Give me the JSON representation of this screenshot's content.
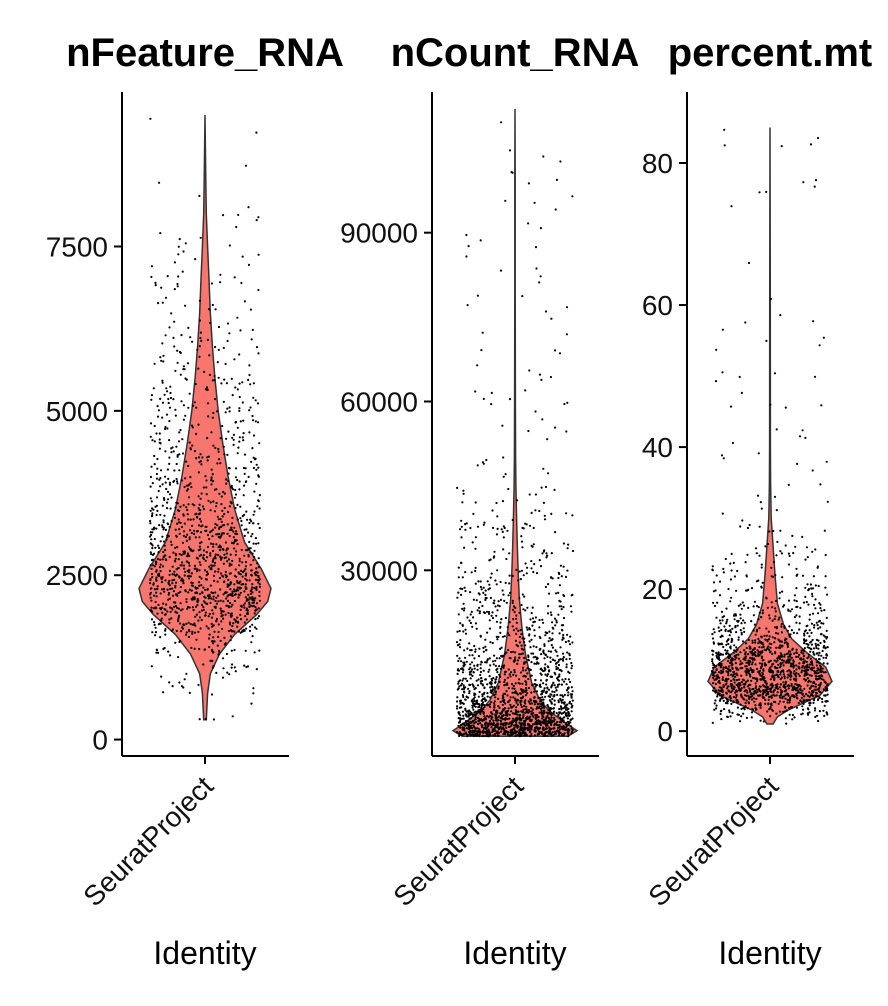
{
  "colors": {
    "violin_fill": "#f8766d",
    "violin_stroke": "#333333",
    "points": "#000000",
    "axis": "#000000"
  },
  "chart_data": [
    {
      "type": "violin",
      "title": "nFeature_RNA",
      "categories": [
        "SeuratProject"
      ],
      "xlabel": "Identity",
      "ylabel": "",
      "ylim": [
        -250,
        9850
      ],
      "yticks": [
        0,
        2500,
        5000,
        7500
      ],
      "ytick_labels": [
        "0",
        "2500",
        "5000",
        "7500"
      ],
      "summary": {
        "min": 300,
        "max": 9500,
        "mode": 2200,
        "median": 2400
      },
      "density_profile": [
        [
          300,
          0.02
        ],
        [
          700,
          0.04
        ],
        [
          1000,
          0.08
        ],
        [
          1300,
          0.22
        ],
        [
          1600,
          0.45
        ],
        [
          1900,
          0.78
        ],
        [
          2100,
          0.95
        ],
        [
          2300,
          1.0
        ],
        [
          2600,
          0.85
        ],
        [
          3000,
          0.6
        ],
        [
          3500,
          0.45
        ],
        [
          4000,
          0.35
        ],
        [
          4500,
          0.27
        ],
        [
          5000,
          0.2
        ],
        [
          5500,
          0.15
        ],
        [
          6000,
          0.11
        ],
        [
          6500,
          0.08
        ],
        [
          7000,
          0.06
        ],
        [
          7500,
          0.04
        ],
        [
          8000,
          0.02
        ],
        [
          8500,
          0.012
        ],
        [
          9000,
          0.006
        ],
        [
          9500,
          0.0
        ]
      ]
    },
    {
      "type": "violin",
      "title": "nCount_RNA",
      "categories": [
        "SeuratProject"
      ],
      "xlabel": "Identity",
      "ylabel": "",
      "ylim": [
        -3000,
        115000
      ],
      "yticks": [
        30000,
        60000,
        90000
      ],
      "ytick_labels": [
        "30000",
        "60000",
        "90000"
      ],
      "summary": {
        "min": 500,
        "max": 112000,
        "mode": 1500,
        "median": 6000
      },
      "density_profile": [
        [
          500,
          0.85
        ],
        [
          1500,
          1.0
        ],
        [
          3000,
          0.8
        ],
        [
          5000,
          0.55
        ],
        [
          7000,
          0.4
        ],
        [
          10000,
          0.27
        ],
        [
          15000,
          0.17
        ],
        [
          20000,
          0.11
        ],
        [
          25000,
          0.07
        ],
        [
          30000,
          0.05
        ],
        [
          35000,
          0.035
        ],
        [
          40000,
          0.025
        ],
        [
          45000,
          0.015
        ],
        [
          50000,
          0.01
        ],
        [
          60000,
          0.006
        ],
        [
          80000,
          0.004
        ],
        [
          100000,
          0.003
        ],
        [
          112000,
          0.0
        ]
      ]
    },
    {
      "type": "violin",
      "title": "percent.mt",
      "categories": [
        "SeuratProject"
      ],
      "xlabel": "Identity",
      "ylabel": "",
      "ylim": [
        -3.5,
        90
      ],
      "yticks": [
        0,
        20,
        40,
        60,
        80
      ],
      "ytick_labels": [
        "0",
        "20",
        "40",
        "60",
        "80"
      ],
      "summary": {
        "min": 1,
        "max": 85,
        "mode": 8,
        "median": 8.5
      },
      "density_profile": [
        [
          1,
          0.05
        ],
        [
          2,
          0.12
        ],
        [
          3,
          0.3
        ],
        [
          4,
          0.55
        ],
        [
          5,
          0.8
        ],
        [
          7,
          1.0
        ],
        [
          9,
          0.9
        ],
        [
          11,
          0.6
        ],
        [
          13,
          0.35
        ],
        [
          15,
          0.22
        ],
        [
          18,
          0.12
        ],
        [
          22,
          0.08
        ],
        [
          26,
          0.05
        ],
        [
          30,
          0.02
        ],
        [
          35,
          0.01
        ],
        [
          40,
          0.007
        ],
        [
          60,
          0.005
        ],
        [
          85,
          0.0
        ]
      ]
    }
  ]
}
